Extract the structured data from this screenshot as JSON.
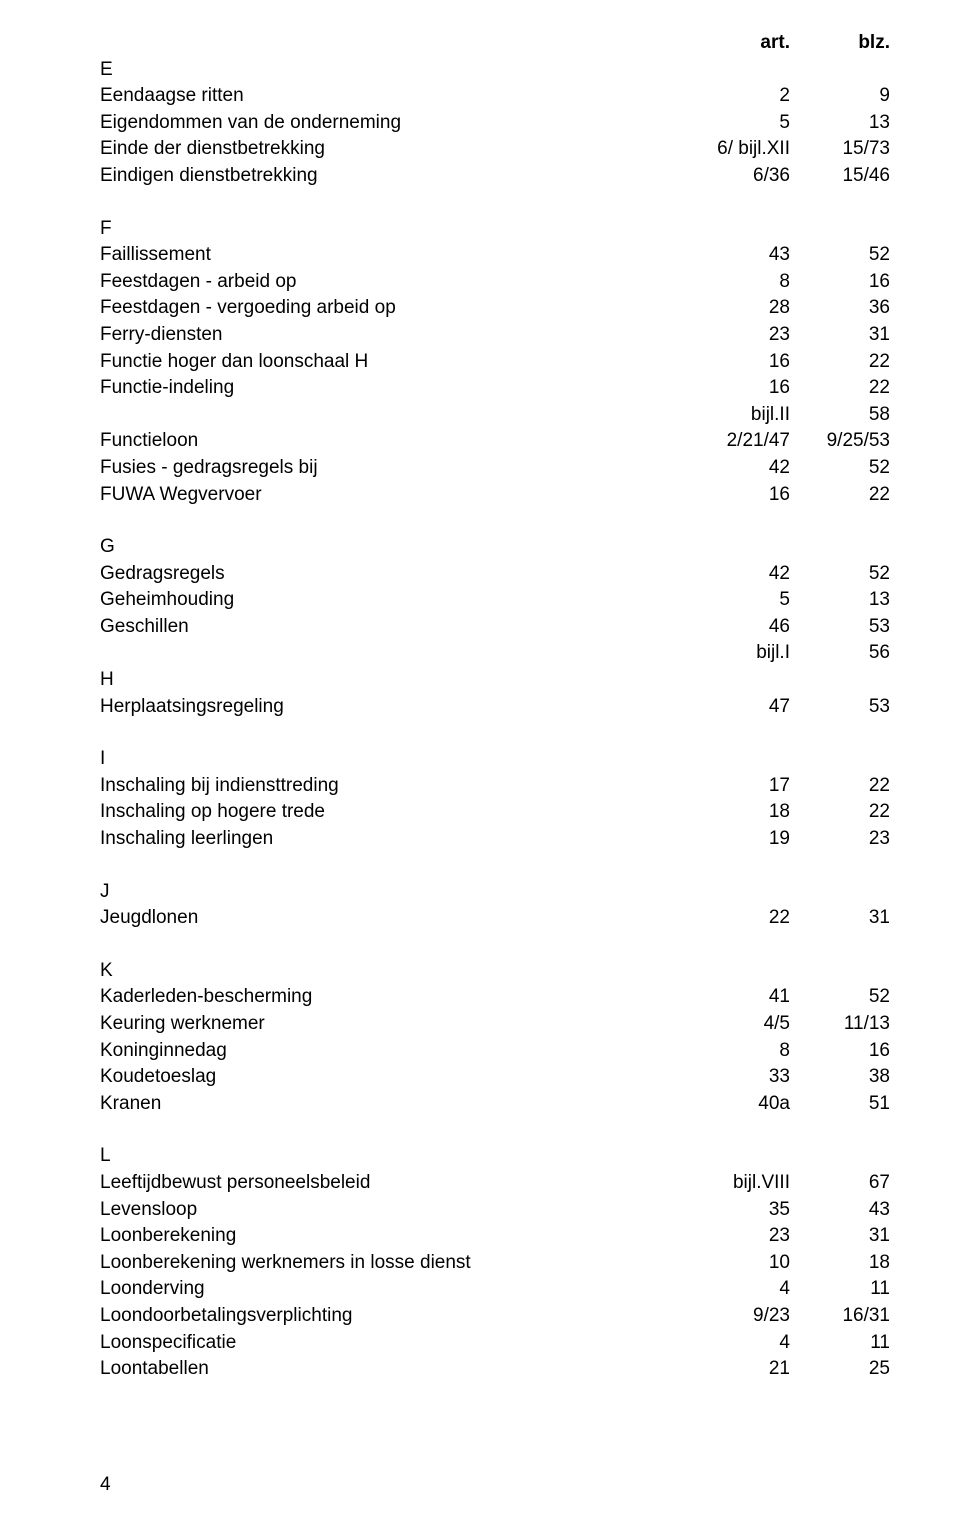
{
  "header": {
    "art": "art.",
    "blz": "blz."
  },
  "sections": [
    {
      "letter": "E",
      "entries": [
        {
          "label": "Eendaagse ritten",
          "art": "2",
          "blz": "9"
        },
        {
          "label": "Eigendommen van de onderneming",
          "art": "5",
          "blz": "13"
        },
        {
          "label": "Einde der dienstbetrekking",
          "art": "6/ bijl.XII",
          "blz": "15/73"
        },
        {
          "label": "Eindigen dienstbetrekking",
          "art": "6/36",
          "blz": "15/46"
        }
      ]
    },
    {
      "letter": "F",
      "entries": [
        {
          "label": "Faillissement",
          "art": "43",
          "blz": "52"
        },
        {
          "label": "Feestdagen - arbeid op",
          "art": "8",
          "blz": "16"
        },
        {
          "label": "Feestdagen - vergoeding arbeid op",
          "art": "28",
          "blz": "36"
        },
        {
          "label": "Ferry-diensten",
          "art": "23",
          "blz": "31"
        },
        {
          "label": "Functie hoger dan loonschaal H",
          "art": "16",
          "blz": "22"
        },
        {
          "label": "Functie-indeling",
          "art": "16",
          "blz": "22"
        },
        {
          "label": "",
          "art": "bijl.II",
          "blz": "58"
        },
        {
          "label": "Functieloon",
          "art": "2/21/47",
          "blz": "9/25/53"
        },
        {
          "label": "Fusies - gedragsregels bij",
          "art": "42",
          "blz": "52"
        },
        {
          "label": "FUWA Wegvervoer",
          "art": "16",
          "blz": "22"
        }
      ]
    },
    {
      "letter": "G",
      "entries": [
        {
          "label": "Gedragsregels",
          "art": "42",
          "blz": "52"
        },
        {
          "label": "Geheimhouding",
          "art": "5",
          "blz": "13"
        },
        {
          "label": "Geschillen",
          "art": "46",
          "blz": "53"
        },
        {
          "label": "",
          "art": "bijl.I",
          "blz": "56"
        }
      ]
    },
    {
      "letter": "H",
      "entries": [
        {
          "label": "Herplaatsingsregeling",
          "art": "47",
          "blz": "53"
        }
      ]
    },
    {
      "letter": "I",
      "entries": [
        {
          "label": "Inschaling bij indiensttreding",
          "art": "17",
          "blz": "22"
        },
        {
          "label": "Inschaling op hogere trede",
          "art": "18",
          "blz": "22"
        },
        {
          "label": "Inschaling leerlingen",
          "art": "19",
          "blz": "23"
        }
      ]
    },
    {
      "letter": "J",
      "entries": [
        {
          "label": "Jeugdlonen",
          "art": "22",
          "blz": "31"
        }
      ]
    },
    {
      "letter": "K",
      "entries": [
        {
          "label": "Kaderleden-bescherming",
          "art": "41",
          "blz": "52"
        },
        {
          "label": "Keuring werknemer",
          "art": "4/5",
          "blz": "11/13"
        },
        {
          "label": "Koninginnedag",
          "art": "8",
          "blz": "16"
        },
        {
          "label": "Koudetoeslag",
          "art": "33",
          "blz": "38"
        },
        {
          "label": "Kranen",
          "art": "40a",
          "blz": "51"
        }
      ]
    },
    {
      "letter": "L",
      "entries": [
        {
          "label": "Leeftijdbewust personeelsbeleid",
          "art": "bijl.VIII",
          "blz": "67"
        },
        {
          "label": "Levensloop",
          "art": "35",
          "blz": "43"
        },
        {
          "label": "Loonberekening",
          "art": "23",
          "blz": "31"
        },
        {
          "label": "Loonberekening werknemers in losse dienst",
          "art": "10",
          "blz": "18"
        },
        {
          "label": "Loonderving",
          "art": "4",
          "blz": "11"
        },
        {
          "label": "Loondoorbetalingsverplichting",
          "art": "9/23",
          "blz": "16/31"
        },
        {
          "label": "Loonspecificatie",
          "art": "4",
          "blz": "11"
        },
        {
          "label": "Loontabellen",
          "art": "21",
          "blz": "25"
        }
      ]
    }
  ],
  "page_number": "4"
}
